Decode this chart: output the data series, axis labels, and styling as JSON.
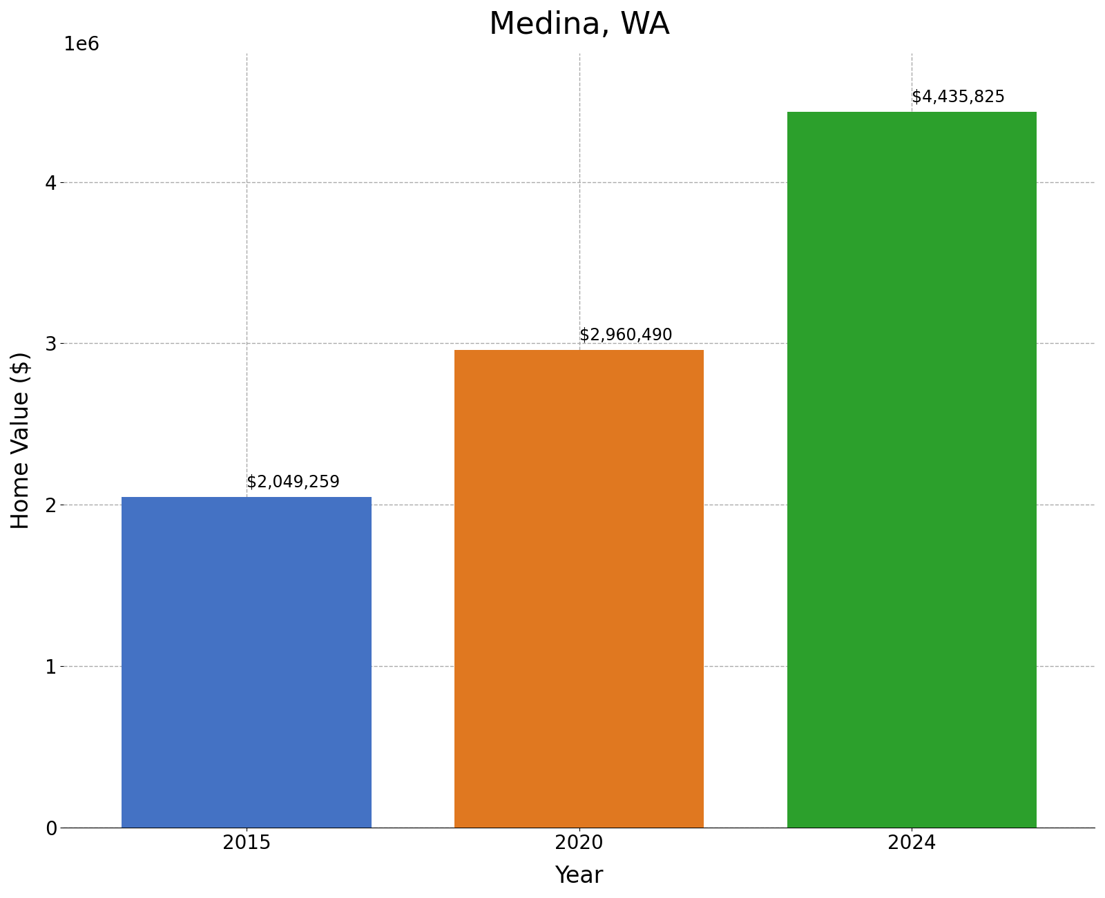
{
  "title": "Medina, WA",
  "xlabel": "Year",
  "ylabel": "Home Value ($)",
  "categories": [
    "2015",
    "2020",
    "2024"
  ],
  "values": [
    2049259,
    2960490,
    4435825
  ],
  "bar_colors": [
    "#4472c4",
    "#e07820",
    "#2ca02c"
  ],
  "bar_labels": [
    "$2,049,259",
    "$2,960,490",
    "$4,435,825"
  ],
  "ylim": [
    0,
    4800000
  ],
  "yticks": [
    0,
    1000000,
    2000000,
    3000000,
    4000000
  ],
  "background_color": "#ffffff",
  "grid_color": "#aaaaaa",
  "title_fontsize": 32,
  "axis_label_fontsize": 24,
  "tick_fontsize": 20,
  "annotation_fontsize": 17,
  "bar_width": 0.75,
  "xlim_left": -0.55,
  "xlim_right": 2.55
}
